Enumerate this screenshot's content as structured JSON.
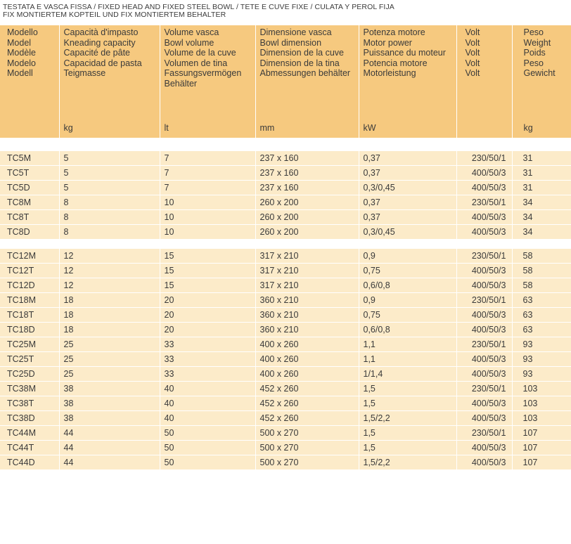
{
  "title": {
    "line1": "TESTATA E VASCA FISSA / FIXED HEAD AND FIXED STEEL BOWL / TETE E CUVE FIXE / CULATA Y PEROL FIJA",
    "line2": "FIX MONTIERTEM KOPTEIL UND FIX MONTIERTEM BEHALTER"
  },
  "headers": [
    {
      "lines": [
        "Modello",
        "Model",
        "Modèle",
        "Modelo",
        "Modell"
      ],
      "unit": ""
    },
    {
      "lines": [
        "Capacità d'impasto",
        "Kneading capacity",
        "Capacité de pâte",
        "Capacidad de pasta",
        "Teigmasse"
      ],
      "unit": "kg"
    },
    {
      "lines": [
        "Volume vasca",
        "Bowl volume",
        "Volume de la cuve",
        "Volumen de tina",
        "Fassungsvermögen",
        "Behälter"
      ],
      "unit": "lt"
    },
    {
      "lines": [
        "Dimensione vasca",
        "Bowl dimension",
        "Dimension de la cuve",
        "Dimension de la tina",
        "Abmessungen behälter"
      ],
      "unit": "mm"
    },
    {
      "lines": [
        "Potenza motore",
        "Motor power",
        "Puissance du moteur",
        "Potencia motore",
        "Motorleistung"
      ],
      "unit": "kW"
    },
    {
      "lines": [
        "Volt",
        "Volt",
        "Volt",
        "Volt",
        "Volt"
      ],
      "unit": ""
    },
    {
      "lines": [
        "Peso",
        "Weight",
        "Poids",
        "Peso",
        "Gewicht"
      ],
      "unit": "kg"
    }
  ],
  "group1": [
    [
      "TC5M",
      "5",
      "7",
      "237 x 160",
      "0,37",
      "230/50/1",
      "31"
    ],
    [
      "TC5T",
      "5",
      "7",
      "237 x 160",
      "0,37",
      "400/50/3",
      "31"
    ],
    [
      "TC5D",
      "5",
      "7",
      "237 x 160",
      "0,3/0,45",
      "400/50/3",
      "31"
    ],
    [
      "TC8M",
      "8",
      "10",
      "260 x 200",
      "0,37",
      "230/50/1",
      "34"
    ],
    [
      "TC8T",
      "8",
      "10",
      "260 x 200",
      "0,37",
      "400/50/3",
      "34"
    ],
    [
      "TC8D",
      "8",
      "10",
      "260 x 200",
      "0,3/0,45",
      "400/50/3",
      "34"
    ]
  ],
  "group2": [
    [
      "TC12M",
      "12",
      "15",
      "317 x 210",
      "0,9",
      "230/50/1",
      "58"
    ],
    [
      "TC12T",
      "12",
      "15",
      "317 x 210",
      "0,75",
      "400/50/3",
      "58"
    ],
    [
      "TC12D",
      "12",
      "15",
      "317 x 210",
      "0,6/0,8",
      "400/50/3",
      "58"
    ],
    [
      "TC18M",
      "18",
      "20",
      "360 x 210",
      "0,9",
      "230/50/1",
      "63"
    ],
    [
      "TC18T",
      "18",
      "20",
      "360 x 210",
      "0,75",
      "400/50/3",
      "63"
    ],
    [
      "TC18D",
      "18",
      "20",
      "360 x 210",
      "0,6/0,8",
      "400/50/3",
      "63"
    ],
    [
      "TC25M",
      "25",
      "33",
      "400 x 260",
      "1,1",
      "230/50/1",
      "93"
    ],
    [
      "TC25T",
      "25",
      "33",
      "400 x 260",
      "1,1",
      "400/50/3",
      "93"
    ],
    [
      "TC25D",
      "25",
      "33",
      "400 x 260",
      "1/1,4",
      "400/50/3",
      "93"
    ],
    [
      "TC38M",
      "38",
      "40",
      "452 x 260",
      "1,5",
      "230/50/1",
      "103"
    ],
    [
      "TC38T",
      "38",
      "40",
      "452 x 260",
      "1,5",
      "400/50/3",
      "103"
    ],
    [
      "TC38D",
      "38",
      "40",
      "452 x 260",
      "1,5/2,2",
      "400/50/3",
      "103"
    ],
    [
      "TC44M",
      "44",
      "50",
      "500 x 270",
      "1,5",
      "230/50/1",
      "107"
    ],
    [
      "TC44T",
      "44",
      "50",
      "500 x 270",
      "1,5",
      "400/50/3",
      "107"
    ],
    [
      "TC44D",
      "44",
      "50",
      "500 x 270",
      "1,5/2,2",
      "400/50/3",
      "107"
    ]
  ],
  "colors": {
    "header_bg": "#f6c97f",
    "row_bg": "#fcebc9"
  }
}
